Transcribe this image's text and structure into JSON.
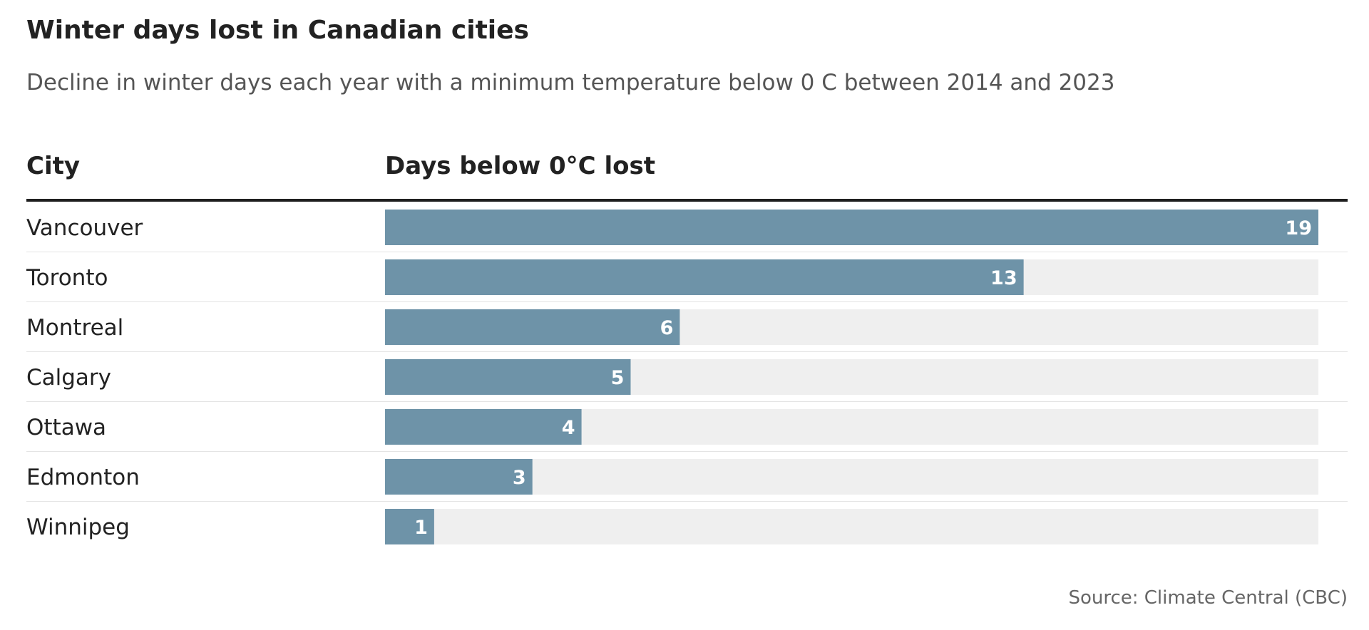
{
  "chart_data": {
    "type": "bar",
    "title": "Winter days lost in Canadian cities",
    "subtitle": "Decline in winter days each year with a minimum temperature below 0 C between 2014 and 2023",
    "column_headers": {
      "category": "City",
      "value": "Days below 0°C lost"
    },
    "categories": [
      "Vancouver",
      "Toronto",
      "Montreal",
      "Calgary",
      "Ottawa",
      "Edmonton",
      "Winnipeg"
    ],
    "values": [
      19,
      13,
      6,
      5,
      4,
      3,
      1
    ],
    "xlim": [
      0,
      19
    ],
    "orientation": "horizontal",
    "data_labels": true,
    "grid": false,
    "legend": "none",
    "colors": {
      "bar": "#6e93a8",
      "track": "#efefef",
      "label": "#ffffff",
      "row_rule": "#e4e4e4"
    },
    "source": "Source: Climate Central (CBC)"
  }
}
